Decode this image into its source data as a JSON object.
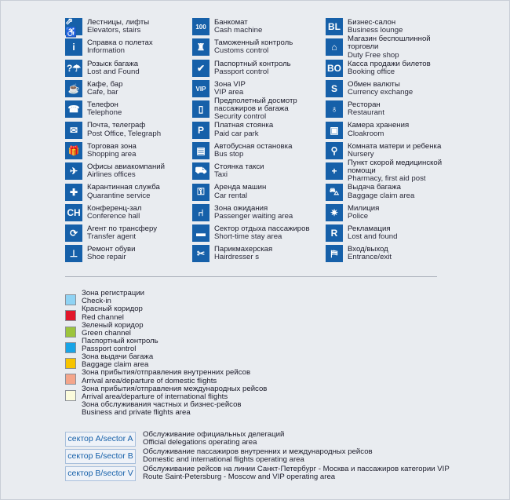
{
  "icon_color": "#1660a9",
  "columns": [
    [
      {
        "icon": "escalator-elevator-icon",
        "glyph": "⇗♿",
        "ru": "Лестницы, лифты",
        "en": "Elevators, stairs"
      },
      {
        "icon": "info-icon",
        "glyph": "i",
        "ru": "Справка о полетах",
        "en": "Information"
      },
      {
        "icon": "lost-found-icon",
        "glyph": "?☂",
        "ru": "Розыск багажа",
        "en": "Lost and Found"
      },
      {
        "icon": "cafe-icon",
        "glyph": "☕",
        "ru": "Кафе, бар",
        "en": "Cafe, bar"
      },
      {
        "icon": "telephone-icon",
        "glyph": "☎",
        "ru": "Телефон",
        "en": "Telephone"
      },
      {
        "icon": "mail-icon",
        "glyph": "✉",
        "ru": "Почта, телеграф",
        "en": "Post Office, Telegraph"
      },
      {
        "icon": "gift-icon",
        "glyph": "🎁",
        "ru": "Торговая зона",
        "en": "Shopping area"
      },
      {
        "icon": "airplane-icon",
        "glyph": "✈",
        "ru": "Офисы авиакомпаний",
        "en": "Airlines offices"
      },
      {
        "icon": "quarantine-icon",
        "glyph": "✚",
        "ru": "Карантинная служба",
        "en": "Quarantine service"
      },
      {
        "icon": "conference-icon",
        "glyph": "CH",
        "ru": "Конференц-зал",
        "en": "Conference hall"
      },
      {
        "icon": "transfer-icon",
        "glyph": "⟳",
        "ru": "Агент по трансферу",
        "en": "Transfer agent"
      },
      {
        "icon": "shoe-repair-icon",
        "glyph": "⊥",
        "ru": "Ремонт обуви",
        "en": "Shoe repair"
      }
    ],
    [
      {
        "icon": "atm-icon",
        "glyph": "100",
        "ru": "Банкомат",
        "en": "Cash machine"
      },
      {
        "icon": "customs-icon",
        "glyph": "♜",
        "ru": "Таможенный контроль",
        "en": "Customs control"
      },
      {
        "icon": "passport-control-icon",
        "glyph": "✔",
        "ru": "Паспортный контроль",
        "en": "Passport control"
      },
      {
        "icon": "vip-icon",
        "glyph": "VIP",
        "ru": "Зона VIP",
        "en": "VIP area"
      },
      {
        "icon": "security-icon",
        "glyph": "▯",
        "ru": "Предполетный досмотр пассажиров и багажа",
        "en": "Security control"
      },
      {
        "icon": "parking-icon",
        "glyph": "P",
        "ru": "Платная стоянка",
        "en": "Paid car park"
      },
      {
        "icon": "bus-icon",
        "glyph": "▤",
        "ru": "Автобусная остановка",
        "en": "Bus stop"
      },
      {
        "icon": "taxi-icon",
        "glyph": "⛟",
        "ru": "Стоянка такси",
        "en": "Taxi"
      },
      {
        "icon": "car-rental-icon",
        "glyph": "⚿",
        "ru": "Аренда машин",
        "en": "Car rental"
      },
      {
        "icon": "waiting-icon",
        "glyph": "⑁",
        "ru": "Зона ожидания",
        "en": "Passenger waiting area"
      },
      {
        "icon": "sofa-icon",
        "glyph": "▬",
        "ru": "Сектор отдыха пассажиров",
        "en": "Short-time stay area"
      },
      {
        "icon": "scissors-icon",
        "glyph": "✂",
        "ru": "Парикмахерская",
        "en": "Hairdresser s"
      }
    ],
    [
      {
        "icon": "business-lounge-icon",
        "glyph": "BL",
        "ru": "Бизнес-салон",
        "en": "Business lounge"
      },
      {
        "icon": "duty-free-icon",
        "glyph": "⌂",
        "ru": "Магазин беспошлинной торговли",
        "en": "Duty Free shop"
      },
      {
        "icon": "booking-office-icon",
        "glyph": "BO",
        "ru": "Касса продажи билетов",
        "en": "Booking office"
      },
      {
        "icon": "currency-icon",
        "glyph": "S",
        "ru": "Обмен валюты",
        "en": "Currency exchange"
      },
      {
        "icon": "restaurant-icon",
        "glyph": "♁",
        "ru": "Ресторан",
        "en": "Restaurant"
      },
      {
        "icon": "cloakroom-icon",
        "glyph": "▣",
        "ru": "Камера хранения",
        "en": "Cloakroom"
      },
      {
        "icon": "nursery-icon",
        "glyph": "⚲",
        "ru": "Комната матери и ребенка",
        "en": "Nursery"
      },
      {
        "icon": "first-aid-icon",
        "glyph": "+",
        "ru": "Пункт скорой медицинской помощи",
        "en": "Pharmacy, first aid post"
      },
      {
        "icon": "baggage-claim-icon",
        "glyph": "⛍",
        "ru": "Выдача багажа",
        "en": "Baggage claim area"
      },
      {
        "icon": "police-icon",
        "glyph": "✷",
        "ru": "Милиция",
        "en": "Police"
      },
      {
        "icon": "claims-icon",
        "glyph": "R",
        "ru": "Рекламация",
        "en": "Lost and found"
      },
      {
        "icon": "entrance-exit-icon",
        "glyph": "⛿",
        "ru": "Вход/выход",
        "en": "Entrance/exit"
      }
    ]
  ],
  "zones": [
    {
      "color": "#8fd3f4",
      "ru": "Зона регистрации",
      "en": "Check-in"
    },
    {
      "color": "#e2162a",
      "ru": "Красный коридор",
      "en": "Red channel"
    },
    {
      "color": "#9cc43c",
      "ru": "Зеленый коридор",
      "en": "Green channel"
    },
    {
      "color": "#18a4e6",
      "ru": "Паспортный контроль",
      "en": "Passport control"
    },
    {
      "color": "#f7c400",
      "ru": "Зона выдачи багажа",
      "en": "Baggage claim area"
    },
    {
      "color": "#f4a58a",
      "ru": "Зона прибытия/отправления внутренних рейсов",
      "en": "Arrival area/departure of domestic flights"
    },
    {
      "color": "#fbfbdc",
      "ru": "Зона прибытия/отправления международных рейсов",
      "en": "Arrival area/departure of international flights"
    },
    {
      "color": null,
      "ru": "Зона обслуживания частных и бизнес-рейсов",
      "en": "Business and private  flights area"
    }
  ],
  "sectors": [
    {
      "label": "сектор А/sector A",
      "ru": "Обслуживание официальных делегаций",
      "en": "Official delegations operating area"
    },
    {
      "label": "сектор Б/sector B",
      "ru": "Обслуживание пассажиров внутренних и международных рейсов",
      "en": "Domestic and international flights operating area"
    },
    {
      "label": "сектор В/sector V",
      "ru": "Обслуживание рейсов на линии Санкт-Петербург - Москва и пассажиров категории VIP",
      "en": "Route Saint-Petersburg - Moscow and VIP operating area"
    }
  ]
}
